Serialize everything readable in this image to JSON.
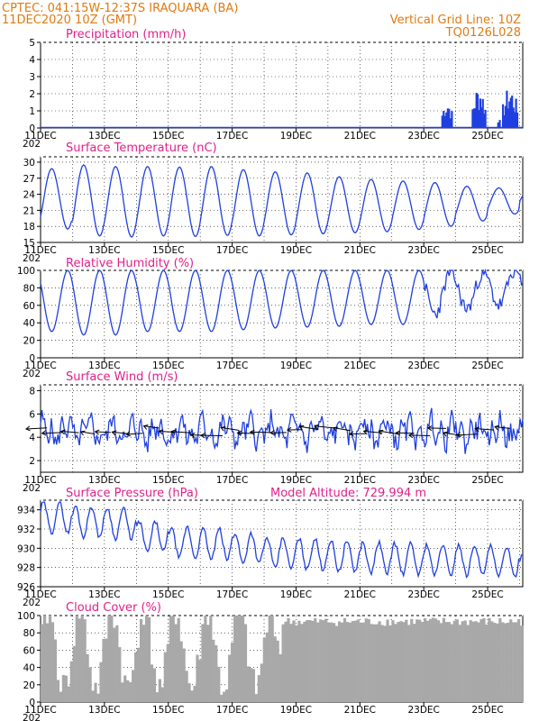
{
  "header": {
    "line1": "CPTEC:   041:15W-12:37S   IRAQUARA (BA)",
    "line2": "11DEC2020 10Z (GMT)",
    "grid_note": "Vertical Grid Line: 10Z",
    "code": "TQ0126L028",
    "color": "#e07a10"
  },
  "colors": {
    "title": "#e0208a",
    "series": "#1f3fe0",
    "cloud": "#a8a8a8",
    "wind_arrow": "#000000"
  },
  "x_axis": {
    "start_day": 11,
    "end_day": 26.1,
    "ticks": [
      11,
      13,
      15,
      17,
      19,
      21,
      23,
      25
    ],
    "tick_labels": [
      "11DEC",
      "13DEC",
      "15DEC",
      "17DEC",
      "19DEC",
      "21DEC",
      "23DEC",
      "25DEC"
    ],
    "year_fragment": "202"
  },
  "chart_data": [
    {
      "type": "bar",
      "title": "Precipitation (mm/h)",
      "ylim": [
        0,
        5
      ],
      "yticks": [
        0,
        1,
        2,
        3,
        4,
        5
      ],
      "events": [
        {
          "x": [
            23.55,
            23.85
          ],
          "peak": 1.8,
          "note": ""
        },
        {
          "x": [
            24.5,
            24.9
          ],
          "peak": 2.6,
          "note": ""
        },
        {
          "x": [
            25.3,
            25.35
          ],
          "peak": 0.7,
          "note": ""
        },
        {
          "x": [
            25.45,
            25.9
          ],
          "peak": 2.5,
          "note": ""
        }
      ]
    },
    {
      "type": "line",
      "title": "Surface Temperature (nC)",
      "ylim": [
        15,
        31
      ],
      "yticks": [
        15,
        18,
        21,
        24,
        27,
        30
      ],
      "daily_max": [
        28.8,
        29.5,
        29.2,
        29.2,
        29.1,
        29.2,
        28.6,
        28.2,
        28.0,
        27.3,
        26.8,
        26.5,
        26.2,
        25.5,
        25.2,
        25.5
      ],
      "daily_min": [
        17.5,
        16.2,
        16.0,
        16.2,
        16.1,
        16.3,
        16.2,
        16.4,
        16.6,
        16.8,
        17.0,
        17.4,
        18.0,
        19.0,
        20.3,
        22.0
      ]
    },
    {
      "type": "line",
      "title": "Relative Humidity (%)",
      "ylim": [
        0,
        100
      ],
      "yticks": [
        0,
        20,
        40,
        60,
        80,
        100
      ],
      "daily_max": [
        100,
        100,
        100,
        100,
        100,
        100,
        100,
        100,
        100,
        100,
        100,
        100,
        98,
        96,
        100,
        95
      ],
      "daily_min": [
        30,
        26,
        26,
        30,
        30,
        30,
        32,
        34,
        35,
        36,
        38,
        38,
        50,
        56,
        60,
        64
      ]
    },
    {
      "type": "line",
      "title": "Surface Wind (m/s)",
      "ylim": [
        1,
        8.5
      ],
      "yticks": [
        2,
        4,
        6,
        8
      ],
      "mean": 4.5,
      "amplitude": 1.2
    },
    {
      "type": "line",
      "title": "Surface Pressure (hPa)",
      "annotation": "Model Altitude: 729.994 m",
      "ylim": [
        926,
        935
      ],
      "yticks": [
        926,
        928,
        930,
        932,
        934
      ],
      "daily_mean": [
        933.2,
        932.8,
        932.6,
        931.2,
        930.6,
        930.4,
        930.0,
        929.5,
        929.4,
        929.2,
        929.0,
        928.9,
        928.8,
        928.8,
        928.6,
        928.0
      ],
      "amplitude": 1.6
    },
    {
      "type": "bar",
      "title": "Cloud Cover (%)",
      "ylim": [
        0,
        100
      ],
      "yticks": [
        0,
        20,
        40,
        60,
        80,
        100
      ],
      "note": ""
    }
  ]
}
